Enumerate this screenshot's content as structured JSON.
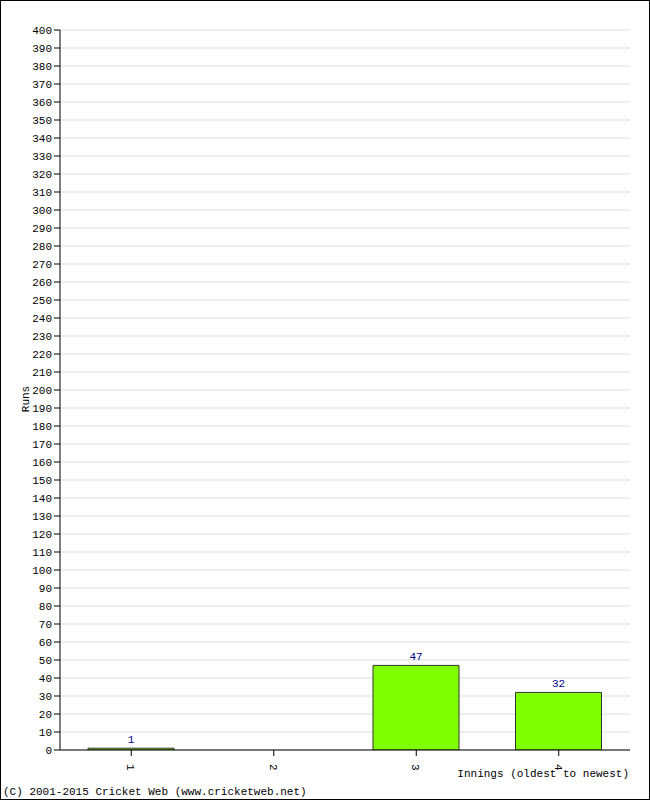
{
  "chart_data": {
    "type": "bar",
    "categories": [
      "1",
      "2",
      "3",
      "4"
    ],
    "values": [
      1,
      0,
      47,
      32
    ],
    "color": "#80ff00",
    "ylim": [
      0,
      400
    ],
    "yticks": [
      0,
      10,
      20,
      30,
      40,
      50,
      60,
      70,
      80,
      90,
      100,
      110,
      120,
      130,
      140,
      150,
      160,
      170,
      180,
      190,
      200,
      210,
      220,
      230,
      240,
      250,
      260,
      270,
      280,
      290,
      300,
      310,
      320,
      330,
      340,
      350,
      360,
      370,
      380,
      390,
      400
    ],
    "grid": true,
    "data_labels": true,
    "x_label": "Innings (oldest to newest)",
    "y_label": "Runs",
    "annotations": [
      "(C) 2001-2015 Cricket Web (www.cricketweb.net)"
    ]
  }
}
